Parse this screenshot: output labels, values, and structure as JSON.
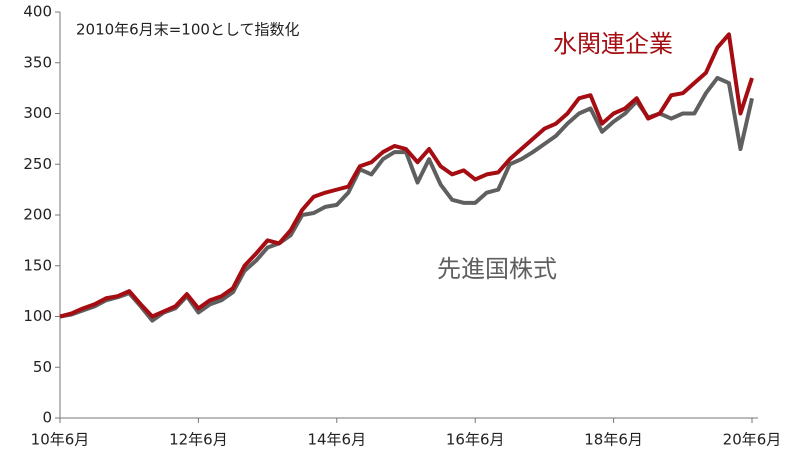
{
  "chart_data": {
    "type": "line",
    "annotation": "2010年6月末=100として指数化",
    "categories": [
      "10年6月",
      null,
      null,
      null,
      null,
      null,
      null,
      null,
      null,
      null,
      null,
      null,
      "12年6月",
      null,
      null,
      null,
      null,
      null,
      null,
      null,
      null,
      null,
      null,
      null,
      "14年6月",
      null,
      null,
      null,
      null,
      null,
      null,
      null,
      null,
      null,
      null,
      null,
      "16年6月",
      null,
      null,
      null,
      null,
      null,
      null,
      null,
      null,
      null,
      null,
      null,
      "18年6月",
      null,
      null,
      null,
      null,
      null,
      null,
      null,
      null,
      null,
      null,
      null,
      "20年6月"
    ],
    "series": [
      {
        "name": "水関連企業",
        "color": "#a50d12",
        "values": [
          100,
          103,
          108,
          112,
          118,
          120,
          125,
          112,
          100,
          105,
          110,
          122,
          108,
          116,
          120,
          128,
          150,
          162,
          175,
          172,
          185,
          205,
          218,
          222,
          225,
          228,
          248,
          252,
          262,
          268,
          265,
          252,
          265,
          248,
          240,
          244,
          235,
          240,
          242,
          255,
          265,
          275,
          285,
          290,
          300,
          315,
          318,
          290,
          300,
          305,
          315,
          295,
          300,
          318,
          320,
          330,
          340,
          365,
          378,
          300,
          335
        ]
      },
      {
        "name": "先進国株式",
        "color": "#5f5f5f",
        "values": [
          100,
          102,
          106,
          110,
          116,
          119,
          123,
          110,
          96,
          104,
          108,
          120,
          104,
          112,
          116,
          124,
          145,
          155,
          168,
          172,
          180,
          200,
          202,
          208,
          210,
          222,
          245,
          240,
          255,
          262,
          262,
          232,
          255,
          230,
          215,
          212,
          212,
          222,
          225,
          250,
          255,
          262,
          270,
          278,
          290,
          300,
          305,
          282,
          292,
          300,
          312,
          296,
          300,
          295,
          300,
          300,
          320,
          335,
          330,
          265,
          315
        ]
      }
    ],
    "ylim": [
      0,
      400
    ],
    "yticks": [
      0,
      50,
      100,
      150,
      200,
      250,
      300,
      350,
      400
    ]
  }
}
